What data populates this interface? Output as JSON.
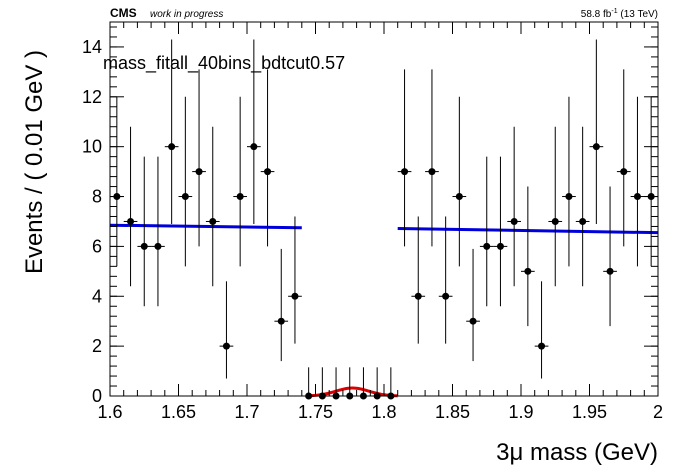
{
  "header": {
    "experiment": "CMS",
    "status": "work in progress",
    "lumi_prefix": "58.8 fb",
    "lumi_exp": "-1",
    "lumi_suffix": " (13 TeV)"
  },
  "chart_data": {
    "type": "scatter",
    "title": "mass_fitall_40bins_bdtcut0.57",
    "xlabel": "3μ mass (GeV)",
    "ylabel": "Events / ( 0.01 GeV )",
    "xlim": [
      1.6,
      2.0
    ],
    "ylim": [
      0,
      15
    ],
    "x_ticks": [
      1.6,
      1.65,
      1.7,
      1.75,
      1.8,
      1.85,
      1.9,
      1.95,
      2.0
    ],
    "x_tick_labels": [
      "1.6",
      "1.65",
      "1.7",
      "1.75",
      "1.8",
      "1.85",
      "1.9",
      "1.95",
      "2"
    ],
    "y_ticks": [
      0,
      2,
      4,
      6,
      8,
      10,
      12,
      14
    ],
    "y_tick_labels": [
      "0",
      "2",
      "4",
      "6",
      "8",
      "10",
      "12",
      "14"
    ],
    "grid": false,
    "legend": "none",
    "series": [
      {
        "kind": "data-points-with-errors",
        "color": "#000000",
        "points": [
          {
            "x": 1.605,
            "y": 8,
            "lo": 2.8,
            "hi": 4.0
          },
          {
            "x": 1.615,
            "y": 7,
            "lo": 2.6,
            "hi": 3.8
          },
          {
            "x": 1.625,
            "y": 6,
            "lo": 2.4,
            "hi": 3.6
          },
          {
            "x": 1.635,
            "y": 6,
            "lo": 2.4,
            "hi": 3.6
          },
          {
            "x": 1.645,
            "y": 10,
            "lo": 3.1,
            "hi": 4.3
          },
          {
            "x": 1.655,
            "y": 8,
            "lo": 2.8,
            "hi": 4.0
          },
          {
            "x": 1.665,
            "y": 9,
            "lo": 3.0,
            "hi": 4.1
          },
          {
            "x": 1.675,
            "y": 7,
            "lo": 2.6,
            "hi": 3.8
          },
          {
            "x": 1.685,
            "y": 2,
            "lo": 1.3,
            "hi": 2.6
          },
          {
            "x": 1.695,
            "y": 8,
            "lo": 2.8,
            "hi": 4.0
          },
          {
            "x": 1.705,
            "y": 10,
            "lo": 3.1,
            "hi": 4.3
          },
          {
            "x": 1.715,
            "y": 9,
            "lo": 3.0,
            "hi": 4.1
          },
          {
            "x": 1.725,
            "y": 3,
            "lo": 1.6,
            "hi": 2.9
          },
          {
            "x": 1.735,
            "y": 4,
            "lo": 1.9,
            "hi": 3.2
          },
          {
            "x": 1.745,
            "y": 0,
            "lo": 0,
            "hi": 1.15
          },
          {
            "x": 1.755,
            "y": 0,
            "lo": 0,
            "hi": 1.15
          },
          {
            "x": 1.765,
            "y": 0,
            "lo": 0,
            "hi": 1.15
          },
          {
            "x": 1.775,
            "y": 0,
            "lo": 0,
            "hi": 1.15
          },
          {
            "x": 1.785,
            "y": 0,
            "lo": 0,
            "hi": 1.15
          },
          {
            "x": 1.795,
            "y": 0,
            "lo": 0,
            "hi": 1.15
          },
          {
            "x": 1.805,
            "y": 0,
            "lo": 0,
            "hi": 1.15
          },
          {
            "x": 1.815,
            "y": 9,
            "lo": 3.0,
            "hi": 4.1
          },
          {
            "x": 1.825,
            "y": 4,
            "lo": 1.9,
            "hi": 3.2
          },
          {
            "x": 1.835,
            "y": 9,
            "lo": 3.0,
            "hi": 4.1
          },
          {
            "x": 1.845,
            "y": 4,
            "lo": 1.9,
            "hi": 3.2
          },
          {
            "x": 1.855,
            "y": 8,
            "lo": 2.8,
            "hi": 4.0
          },
          {
            "x": 1.865,
            "y": 3,
            "lo": 1.6,
            "hi": 2.9
          },
          {
            "x": 1.875,
            "y": 6,
            "lo": 2.4,
            "hi": 3.6
          },
          {
            "x": 1.885,
            "y": 6,
            "lo": 2.4,
            "hi": 3.6
          },
          {
            "x": 1.895,
            "y": 7,
            "lo": 2.6,
            "hi": 3.8
          },
          {
            "x": 1.905,
            "y": 5,
            "lo": 2.2,
            "hi": 3.4
          },
          {
            "x": 1.915,
            "y": 2,
            "lo": 1.3,
            "hi": 2.6
          },
          {
            "x": 1.925,
            "y": 7,
            "lo": 2.6,
            "hi": 3.8
          },
          {
            "x": 1.935,
            "y": 8,
            "lo": 2.8,
            "hi": 4.0
          },
          {
            "x": 1.945,
            "y": 7,
            "lo": 2.6,
            "hi": 3.8
          },
          {
            "x": 1.955,
            "y": 10,
            "lo": 3.1,
            "hi": 4.3
          },
          {
            "x": 1.965,
            "y": 5,
            "lo": 2.2,
            "hi": 3.4
          },
          {
            "x": 1.975,
            "y": 9,
            "lo": 3.0,
            "hi": 4.1
          },
          {
            "x": 1.985,
            "y": 8,
            "lo": 2.8,
            "hi": 4.0
          },
          {
            "x": 1.995,
            "y": 8,
            "lo": 2.8,
            "hi": 4.0
          }
        ]
      },
      {
        "kind": "background-fit",
        "color": "#0000dd",
        "segments": [
          {
            "x": [
              1.6,
              1.74
            ],
            "y": [
              6.85,
              6.75
            ]
          },
          {
            "x": [
              1.81,
              2.0
            ],
            "y": [
              6.72,
              6.55
            ]
          }
        ]
      },
      {
        "kind": "signal-fit",
        "color": "#dd0000",
        "mean": 1.777,
        "width": 0.012,
        "peak": 0.32,
        "x_range": [
          1.745,
          1.81
        ]
      }
    ]
  }
}
